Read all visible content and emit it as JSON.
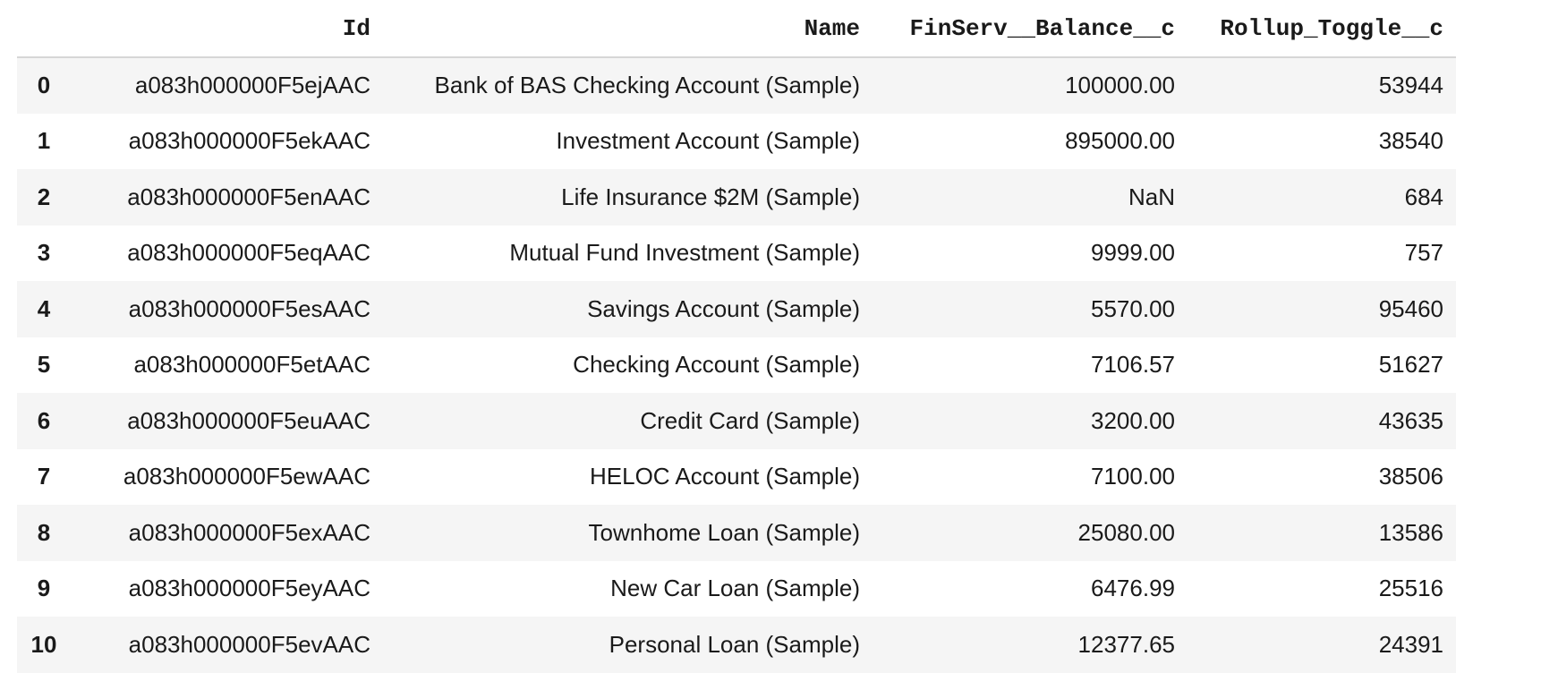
{
  "table": {
    "index_header": "",
    "columns": [
      "Id",
      "Name",
      "FinServ__Balance__c",
      "Rollup_Toggle__c"
    ],
    "rows": [
      {
        "index": "0",
        "id": "a083h000000F5ejAAC",
        "name": "Bank of BAS Checking Account (Sample)",
        "balance": "100000.00",
        "rollup": "53944"
      },
      {
        "index": "1",
        "id": "a083h000000F5ekAAC",
        "name": "Investment Account (Sample)",
        "balance": "895000.00",
        "rollup": "38540"
      },
      {
        "index": "2",
        "id": "a083h000000F5enAAC",
        "name": "Life Insurance $2M (Sample)",
        "balance": "NaN",
        "rollup": "684"
      },
      {
        "index": "3",
        "id": "a083h000000F5eqAAC",
        "name": "Mutual Fund Investment (Sample)",
        "balance": "9999.00",
        "rollup": "757"
      },
      {
        "index": "4",
        "id": "a083h000000F5esAAC",
        "name": "Savings Account (Sample)",
        "balance": "5570.00",
        "rollup": "95460"
      },
      {
        "index": "5",
        "id": "a083h000000F5etAAC",
        "name": "Checking Account (Sample)",
        "balance": "7106.57",
        "rollup": "51627"
      },
      {
        "index": "6",
        "id": "a083h000000F5euAAC",
        "name": "Credit Card (Sample)",
        "balance": "3200.00",
        "rollup": "43635"
      },
      {
        "index": "7",
        "id": "a083h000000F5ewAAC",
        "name": "HELOC Account (Sample)",
        "balance": "7100.00",
        "rollup": "38506"
      },
      {
        "index": "8",
        "id": "a083h000000F5exAAC",
        "name": "Townhome Loan (Sample)",
        "balance": "25080.00",
        "rollup": "13586"
      },
      {
        "index": "9",
        "id": "a083h000000F5eyAAC",
        "name": "New Car Loan (Sample)",
        "balance": "6476.99",
        "rollup": "25516"
      },
      {
        "index": "10",
        "id": "a083h000000F5evAAC",
        "name": "Personal Loan (Sample)",
        "balance": "12377.65",
        "rollup": "24391"
      }
    ]
  }
}
